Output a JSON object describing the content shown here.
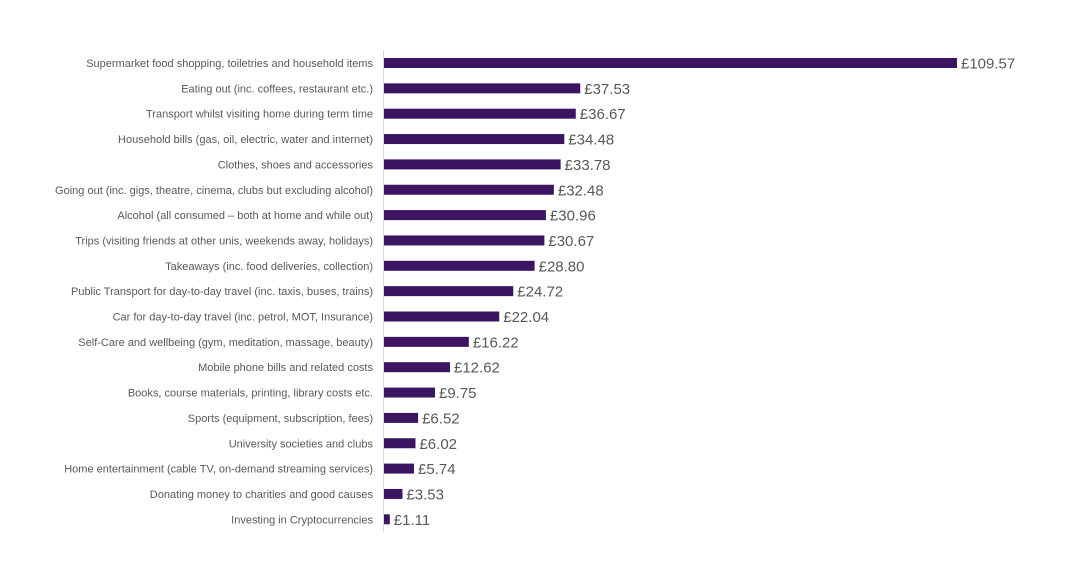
{
  "chart_data": {
    "type": "bar",
    "orientation": "horizontal",
    "title": "",
    "xlabel": "",
    "ylabel": "",
    "currency_prefix": "£",
    "xlim": [
      0,
      110
    ],
    "grid": false,
    "legend": "none",
    "bar_color": "#3b1462",
    "categories": [
      "Supermarket food shopping, toiletries and household items",
      "Eating out (inc. coffees, restaurant etc.)",
      "Transport whilst visiting home during term time",
      "Household bills (gas, oil, electric, water and internet)",
      "Clothes, shoes and accessories",
      "Going out (inc. gigs, theatre, cinema, clubs but excluding alcohol)",
      "Alcohol (all consumed – both at home and while out)",
      "Trips (visiting friends at other unis, weekends away, holidays)",
      "Takeaways (inc. food deliveries, collection)",
      "Public Transport for day-to-day travel (inc. taxis, buses, trains)",
      "Car for day-to-day travel (inc. petrol, MOT, Insurance)",
      "Self-Care and wellbeing (gym, meditation, massage, beauty)",
      "Mobile phone bills and related costs",
      "Books, course materials, printing, library costs etc.",
      "Sports (equipment, subscription, fees)",
      "University societies and clubs",
      "Home entertainment (cable TV, on-demand streaming services)",
      "Donating money to charities and good causes",
      "Investing in Cryptocurrencies"
    ],
    "values": [
      109.57,
      37.53,
      36.67,
      34.48,
      33.78,
      32.48,
      30.96,
      30.67,
      28.8,
      24.72,
      22.04,
      16.22,
      12.62,
      9.75,
      6.52,
      6.02,
      5.74,
      3.53,
      1.11
    ],
    "value_labels": [
      "£109.57",
      "£37.53",
      "£36.67",
      "£34.48",
      "£33.78",
      "£32.48",
      "£30.96",
      "£30.67",
      "£28.80",
      "£24.72",
      "£22.04",
      "£16.22",
      "£12.62",
      "£9.75",
      "£6.52",
      "£6.02",
      "£5.74",
      "£3.53",
      "£1.11"
    ]
  }
}
